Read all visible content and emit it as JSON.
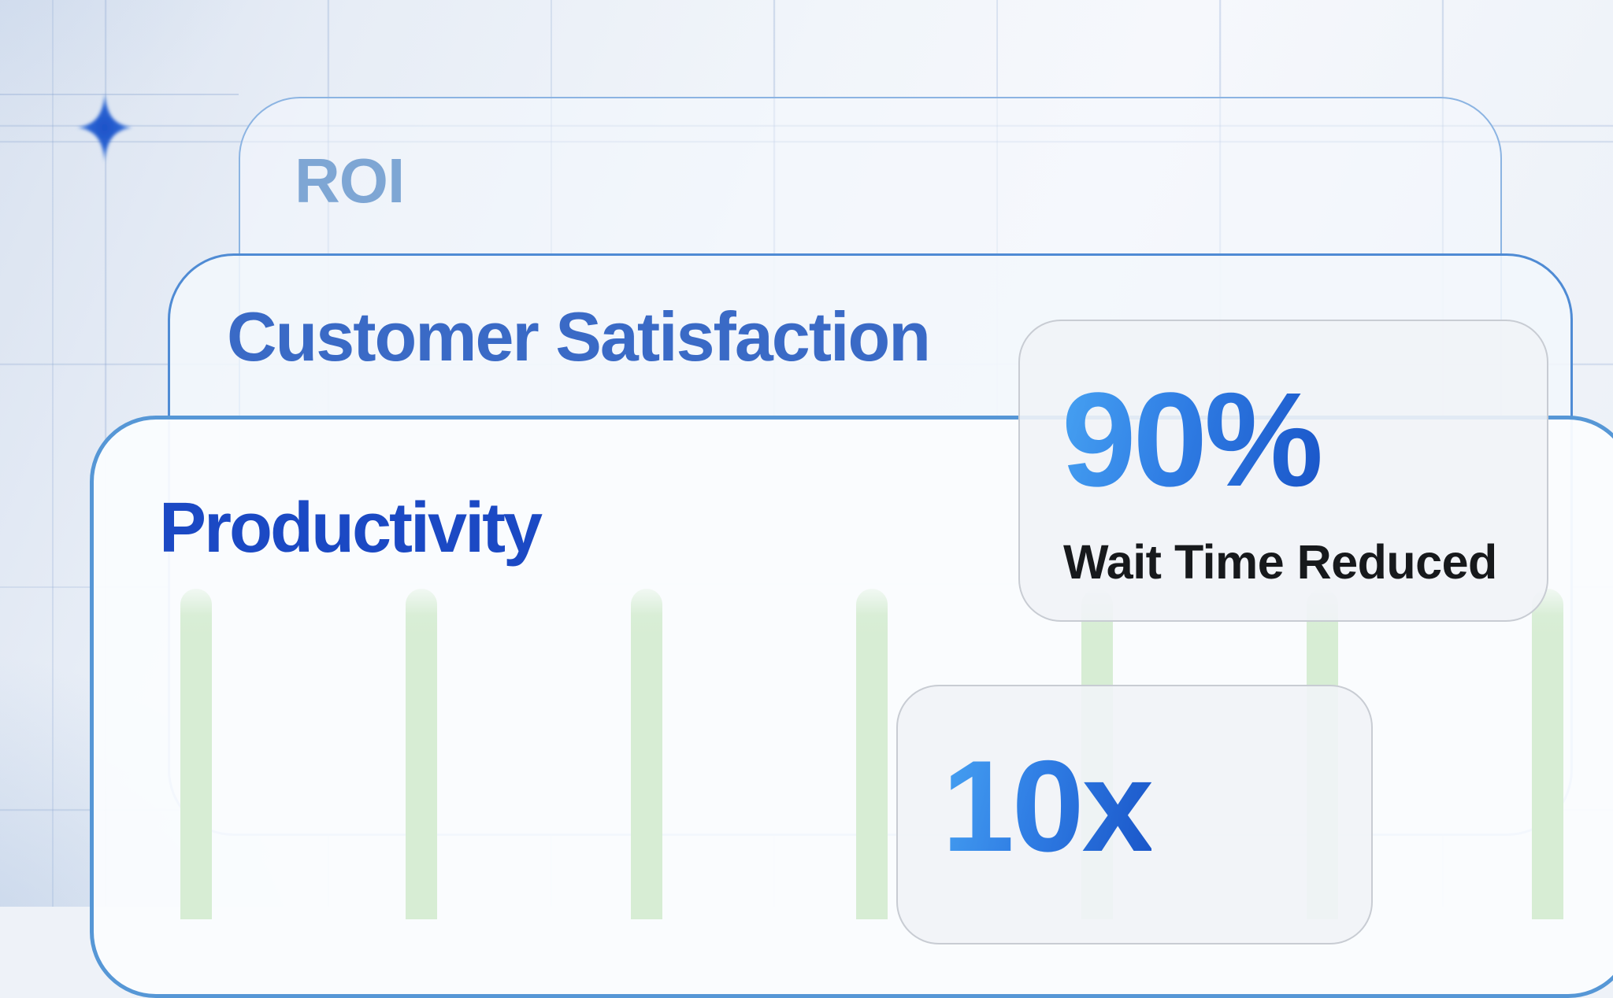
{
  "graphic": {
    "kind": "benefits-infographic",
    "layers": [
      {
        "label": "ROI"
      },
      {
        "label": "Customer Satisfaction"
      },
      {
        "label": "Productivity"
      }
    ],
    "stats": [
      {
        "value": "90%",
        "label": "Wait Time Reduced"
      },
      {
        "value": "10x",
        "label": ""
      }
    ],
    "decor": {
      "sparkle_icon": "four-point-star",
      "bar_chart": {
        "type": "bar",
        "bar_count": 7,
        "orientation": "vertical",
        "values_labeled": false
      }
    },
    "colors": {
      "roi_text": "#7ea6d4",
      "customer_satisfaction_text": "#3a6ac6",
      "productivity_text": "#1b49c4",
      "stat_gradient_start": "#47a2f2",
      "stat_gradient_end": "#1a55c8",
      "stat_label_text": "#17191c",
      "card_border_blue": "#4f8bd4",
      "card_border_light_blue": "#8cb4e2",
      "stat_card_border": "#c8ccd3",
      "bar_green": "#d7edd4",
      "sparkle_blue": "#1d52c8",
      "background": "#eef2f8"
    }
  }
}
